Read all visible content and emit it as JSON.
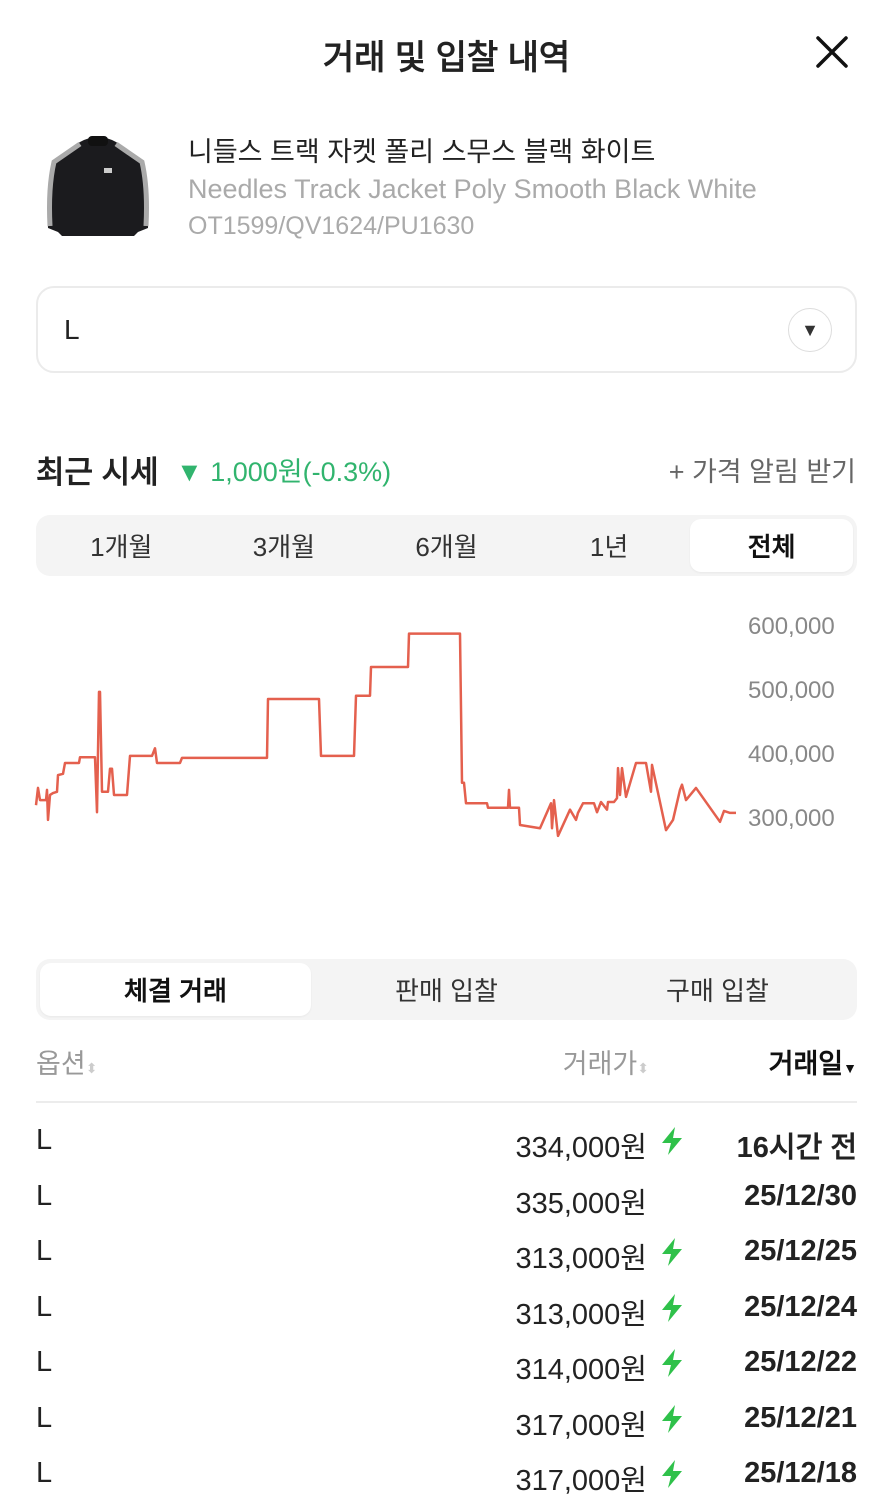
{
  "header": {
    "title": "거래 및 입찰 내역",
    "close_icon": "close-icon"
  },
  "product": {
    "name_ko": "니들스 트랙 자켓 폴리 스무스 블랙 화이트",
    "name_en": "Needles Track Jacket Poly Smooth Black White",
    "code": "OT1599/QV1624/PU1630"
  },
  "size_select": {
    "value": "L",
    "icon": "triangle-down-icon"
  },
  "recent": {
    "label": "최근 시세",
    "change": "▼ 1,000원(-0.3%)",
    "change_color": "#31b46e",
    "alert_label": "+ 가격 알림 받기"
  },
  "period_tabs": [
    {
      "label": "1개월"
    },
    {
      "label": "3개월"
    },
    {
      "label": "6개월"
    },
    {
      "label": "1년"
    },
    {
      "label": "전체",
      "selected": true
    }
  ],
  "chart_data": {
    "type": "line",
    "color": "#e4604e",
    "ylim": [
      270000,
      610000
    ],
    "yticks": [
      "600,000",
      "500,000",
      "400,000",
      "300,000"
    ],
    "ytick_values": [
      600000,
      500000,
      400000,
      300000
    ],
    "values": [
      320000,
      347000,
      328000,
      328000,
      344000,
      297000,
      336000,
      339000,
      341000,
      367000,
      369000,
      386000,
      386000,
      395000,
      395000,
      395000,
      395000,
      309000,
      497000,
      497000,
      341000,
      341000,
      377000,
      377000,
      336000,
      336000,
      397000,
      397000,
      409000,
      386000,
      386000,
      394000,
      394000,
      486000,
      486000,
      397000,
      397000,
      491000,
      491000,
      536000,
      536000,
      588000,
      588000,
      355000,
      355000,
      323000,
      323000,
      316000,
      316000,
      344000,
      316000,
      316000,
      289000,
      284000,
      323000,
      284000,
      328000,
      272000,
      313000,
      297000,
      308000,
      323000,
      323000,
      309000,
      325000,
      313000,
      325000,
      325000,
      331000,
      378000,
      336000,
      378000,
      333000,
      386000,
      386000,
      341000,
      383000,
      281000,
      297000,
      344000,
      352000,
      328000,
      347000,
      294000,
      311000,
      308000,
      308000
    ]
  },
  "trade_tabs": [
    {
      "label": "체결 거래",
      "selected": true
    },
    {
      "label": "판매 입찰"
    },
    {
      "label": "구매 입찰"
    }
  ],
  "table": {
    "headers": {
      "option": "옵션",
      "price": "거래가",
      "date": "거래일"
    },
    "rows": [
      {
        "option": "L",
        "price": "334,000원",
        "fast": true,
        "date": "16시간 전"
      },
      {
        "option": "L",
        "price": "335,000원",
        "fast": false,
        "date": "25/12/30"
      },
      {
        "option": "L",
        "price": "313,000원",
        "fast": true,
        "date": "25/12/25"
      },
      {
        "option": "L",
        "price": "313,000원",
        "fast": true,
        "date": "25/12/24"
      },
      {
        "option": "L",
        "price": "314,000원",
        "fast": true,
        "date": "25/12/22"
      },
      {
        "option": "L",
        "price": "317,000원",
        "fast": true,
        "date": "25/12/21"
      },
      {
        "option": "L",
        "price": "317,000원",
        "fast": true,
        "date": "25/12/18"
      }
    ]
  }
}
